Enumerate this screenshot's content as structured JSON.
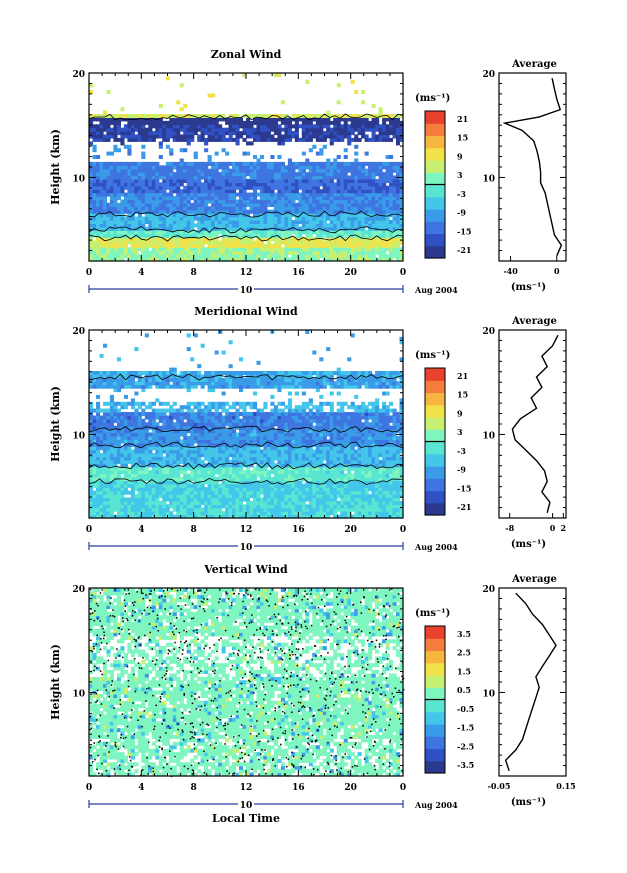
{
  "x_axis_title": "Local Time",
  "date_label": "Aug 2004",
  "day_label": "10",
  "colors": {
    "scale": [
      "#2b3a8f",
      "#2f51c4",
      "#3f75e0",
      "#3a9be8",
      "#43c6ea",
      "#58e5d2",
      "#7ff5c0",
      "#c8f070",
      "#f2e24a",
      "#f6b640",
      "#f47c3c",
      "#e8412e"
    ],
    "background": "#ffffff",
    "line": "#000000"
  },
  "chart_data": [
    {
      "type": "heatmap",
      "title": "Zonal Wind",
      "xlabel": "",
      "ylabel": "Height (km)",
      "x_ticks": [
        "0",
        "4",
        "8",
        "12",
        "16",
        "20",
        "0"
      ],
      "y_ticks": [
        "10",
        "20"
      ],
      "xlim": [
        0,
        24
      ],
      "ylim": [
        2,
        20
      ],
      "colorbar": {
        "unit": "(ms⁻¹)",
        "ticks": [
          "21",
          "15",
          "9",
          "3",
          "-3",
          "-9",
          "-15",
          "-21"
        ],
        "range": [
          -24,
          24
        ]
      },
      "profile": {
        "title": "Average",
        "xlabel": "(ms⁻¹)",
        "x_ticks": [
          "-40",
          "0"
        ],
        "y_ticks": [
          "10",
          "20"
        ],
        "xlim": [
          -50,
          8
        ],
        "height": [
          2.5,
          3.5,
          4.5,
          5.5,
          6.5,
          7.5,
          8.5,
          9.5,
          10.5,
          11.5,
          12.5,
          13.5,
          14.5,
          15.2,
          15.8,
          16.5,
          17.5,
          18.5,
          19.5
        ],
        "value": [
          0,
          4,
          -2,
          -4,
          -6,
          -8,
          -10,
          -14,
          -14,
          -15,
          -17,
          -20,
          -30,
          -45,
          -15,
          3,
          0,
          -2,
          -4
        ]
      }
    },
    {
      "type": "heatmap",
      "title": "Meridional Wind",
      "xlabel": "",
      "ylabel": "Height (km)",
      "x_ticks": [
        "0",
        "4",
        "8",
        "12",
        "16",
        "20",
        "0"
      ],
      "y_ticks": [
        "10",
        "20"
      ],
      "xlim": [
        0,
        24
      ],
      "ylim": [
        2,
        20
      ],
      "colorbar": {
        "unit": "(ms⁻¹)",
        "ticks": [
          "21",
          "15",
          "9",
          "3",
          "-3",
          "-9",
          "-15",
          "-21"
        ],
        "range": [
          -24,
          24
        ]
      },
      "profile": {
        "title": "Average",
        "xlabel": "(ms⁻¹)",
        "x_ticks": [
          "-8",
          "0",
          "2"
        ],
        "y_ticks": [
          "10",
          "20"
        ],
        "xlim": [
          -10,
          2.5
        ],
        "height": [
          2.5,
          3.5,
          4.5,
          5.5,
          6.5,
          7.5,
          8.5,
          9.5,
          10.5,
          11.5,
          12.5,
          13.5,
          14.5,
          15.5,
          16.5,
          17.5,
          18.5,
          19.5
        ],
        "value": [
          -1,
          -0.5,
          -2,
          -1,
          -1.5,
          -3,
          -5,
          -7,
          -7.5,
          -6,
          -3,
          -4,
          -2,
          -3,
          -1,
          -2,
          0,
          1
        ]
      }
    },
    {
      "type": "heatmap",
      "title": "Vertical Wind",
      "xlabel": "Local Time",
      "ylabel": "Height (km)",
      "x_ticks": [
        "0",
        "4",
        "8",
        "12",
        "16",
        "20",
        "0"
      ],
      "y_ticks": [
        "10",
        "20"
      ],
      "xlim": [
        0,
        24
      ],
      "ylim": [
        2,
        20
      ],
      "colorbar": {
        "unit": "(ms⁻¹)",
        "ticks": [
          "3.5",
          "2.5",
          "1.5",
          "0.5",
          "-0.5",
          "-1.5",
          "-2.5",
          "-3.5"
        ],
        "range": [
          -4,
          4
        ]
      },
      "profile": {
        "title": "Average",
        "xlabel": "(ms⁻¹)",
        "x_ticks": [
          "-0.05",
          "0.15"
        ],
        "y_ticks": [
          "10",
          "20"
        ],
        "xlim": [
          -0.05,
          0.15
        ],
        "height": [
          2.5,
          3.5,
          4.5,
          5.5,
          6.5,
          7.5,
          8.5,
          9.5,
          10.5,
          11.5,
          12.5,
          13.5,
          14.5,
          15.5,
          16.5,
          17.5,
          18.5,
          19.5
        ],
        "value": [
          -0.02,
          -0.03,
          0.0,
          0.02,
          0.03,
          0.04,
          0.05,
          0.06,
          0.07,
          0.06,
          0.08,
          0.1,
          0.12,
          0.1,
          0.08,
          0.05,
          0.03,
          0.0
        ]
      }
    }
  ]
}
